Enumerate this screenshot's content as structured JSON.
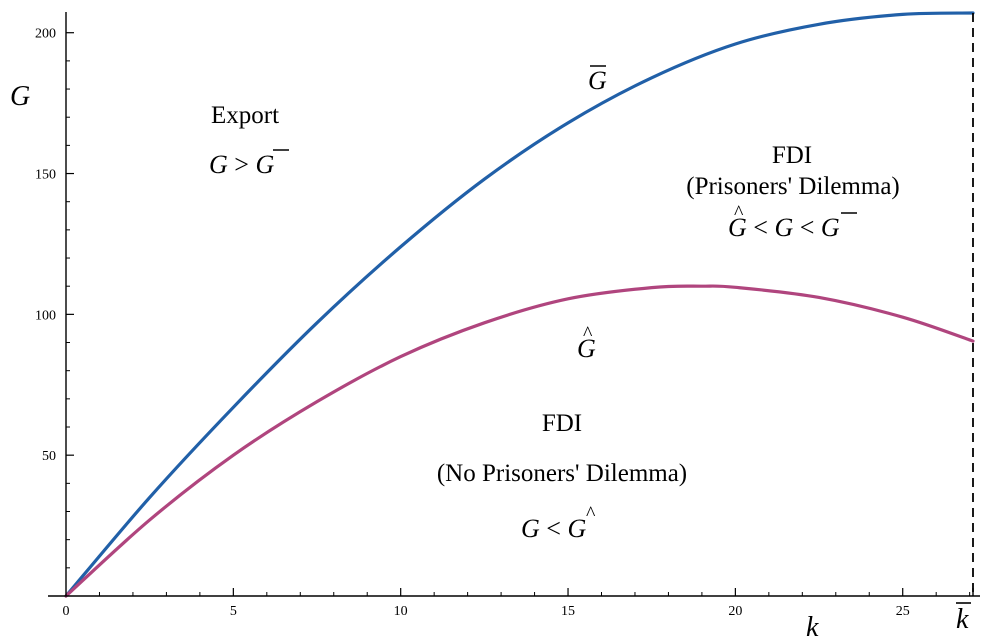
{
  "chart_data": {
    "type": "line",
    "xlabel": "k",
    "ylabel": "G",
    "xlim": [
      0,
      27.1
    ],
    "ylim": [
      0,
      207
    ],
    "x_ticks": [
      "0",
      "5",
      "10",
      "15",
      "20",
      "25"
    ],
    "y_ticks": [
      "50",
      "100",
      "150",
      "200"
    ],
    "k_bar_label": "k",
    "k_bar_value": 27.1,
    "series": [
      {
        "name": "G",
        "name_accent": "bar",
        "color": "#2160a8",
        "x": [
          0,
          2.5,
          5,
          7.5,
          10,
          12.5,
          15,
          17.5,
          20,
          22.5,
          25,
          27.1
        ],
        "y": [
          0,
          35,
          67,
          97,
          124,
          148,
          168,
          184,
          196,
          203,
          206.5,
          207
        ]
      },
      {
        "name": "G",
        "name_accent": "hat",
        "color": "#b0457e",
        "x": [
          0,
          2.5,
          5,
          7.5,
          10,
          12.5,
          15,
          17.5,
          19,
          20,
          22.5,
          25,
          27.1
        ],
        "y": [
          0,
          27,
          50,
          69,
          85,
          97,
          105.5,
          109.5,
          110,
          109.6,
          106,
          99,
          90.5
        ]
      }
    ],
    "annotations": {
      "export_title": "Export",
      "export_cond": [
        "G",
        " > ",
        "G"
      ],
      "fdi_pd_title": "FDI",
      "fdi_pd_sub": "(Prisoners' Dilemma)",
      "fdi_pd_cond": [
        "G",
        " < ",
        "G",
        " < ",
        "G"
      ],
      "fdi_npd_title": "FDI",
      "fdi_npd_sub": "(No Prisoners' Dilemma)",
      "fdi_npd_cond": [
        "G",
        " < ",
        "G"
      ]
    }
  }
}
